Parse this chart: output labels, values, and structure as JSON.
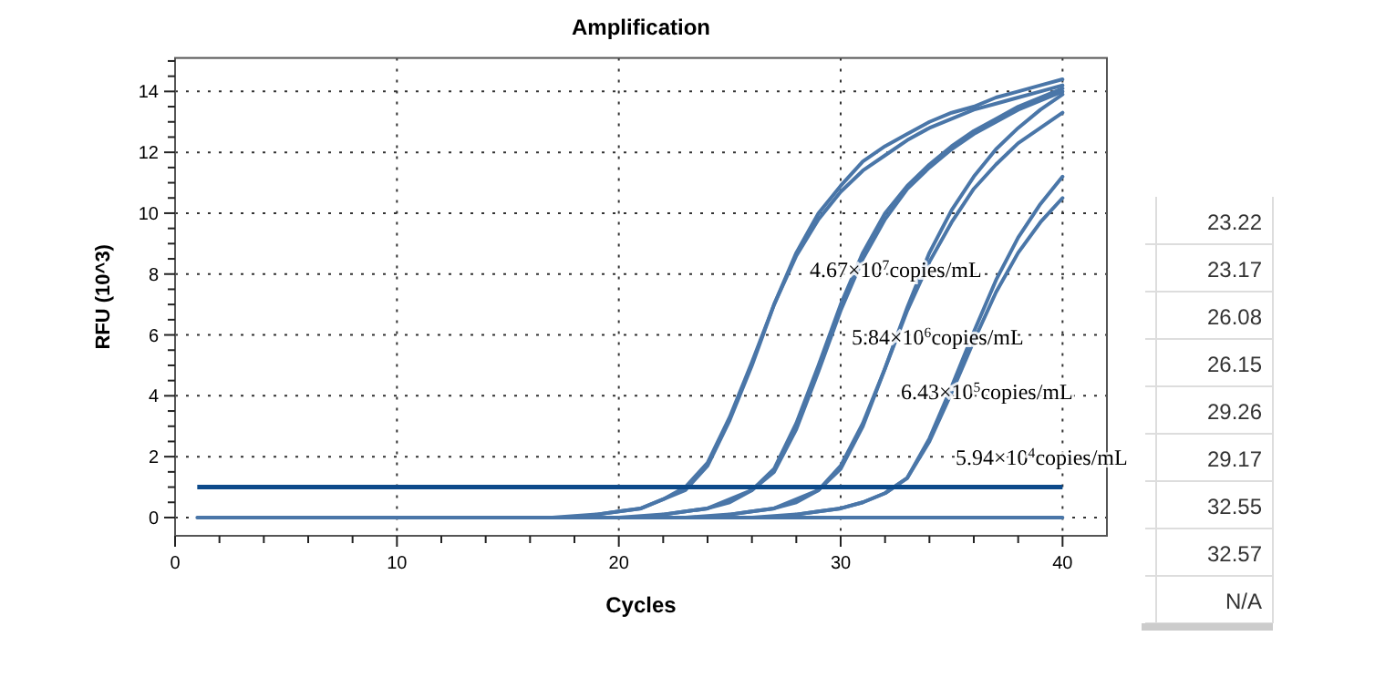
{
  "chart_data": {
    "type": "line",
    "title": "Amplification",
    "xlabel": "Cycles",
    "ylabel": "RFU (10^3)",
    "xlim": [
      0,
      42
    ],
    "ylim": [
      -0.6,
      15.1
    ],
    "xticks": [
      0,
      {
        "value": 2,
        "label": null
      },
      {
        "value": 4,
        "label": null
      },
      {
        "value": 6,
        "label": null
      },
      {
        "value": 8,
        "label": null
      },
      10,
      {
        "value": 12,
        "label": null
      },
      {
        "value": 14,
        "label": null
      },
      {
        "value": 16,
        "label": null
      },
      {
        "value": 18,
        "label": null
      },
      20,
      {
        "value": 22,
        "label": null
      },
      {
        "value": 24,
        "label": null
      },
      {
        "value": 26,
        "label": null
      },
      {
        "value": 28,
        "label": null
      },
      30,
      {
        "value": 32,
        "label": null
      },
      {
        "value": 34,
        "label": null
      },
      {
        "value": 36,
        "label": null
      },
      {
        "value": 38,
        "label": null
      },
      40
    ],
    "yticks": [
      0,
      {
        "value": 0.5,
        "label": null
      },
      {
        "value": 1,
        "label": null
      },
      {
        "value": 1.5,
        "label": null
      },
      2,
      {
        "value": 2.5,
        "label": null
      },
      {
        "value": 3,
        "label": null
      },
      {
        "value": 3.5,
        "label": null
      },
      4,
      {
        "value": 4.5,
        "label": null
      },
      {
        "value": 5,
        "label": null
      },
      {
        "value": 5.5,
        "label": null
      },
      6,
      {
        "value": 6.5,
        "label": null
      },
      {
        "value": 7,
        "label": null
      },
      {
        "value": 7.5,
        "label": null
      },
      8,
      {
        "value": 8.5,
        "label": null
      },
      {
        "value": 9,
        "label": null
      },
      {
        "value": 9.5,
        "label": null
      },
      10,
      {
        "value": 10.5,
        "label": null
      },
      {
        "value": 11,
        "label": null
      },
      {
        "value": 11.5,
        "label": null
      },
      12,
      {
        "value": 12.5,
        "label": null
      },
      {
        "value": 13,
        "label": null
      },
      {
        "value": 13.5,
        "label": null
      },
      14,
      {
        "value": 14.5,
        "label": null
      },
      {
        "value": 15,
        "label": null
      }
    ],
    "grid": true,
    "marker": "none",
    "line_style": "solid",
    "series": [
      {
        "color": "#4a76a8",
        "x": [
          17,
          19,
          20,
          21,
          22,
          23,
          24,
          25,
          26,
          27,
          28,
          29,
          30,
          31,
          32,
          33,
          34,
          35,
          36,
          37,
          38,
          39,
          40
        ],
        "values": [
          0,
          0.1,
          0.2,
          0.3,
          0.6,
          0.9,
          1.7,
          3.2,
          5.0,
          7.0,
          8.7,
          10.0,
          10.9,
          11.7,
          12.2,
          12.6,
          13.0,
          13.3,
          13.5,
          13.8,
          14.0,
          14.2,
          14.4
        ]
      },
      {
        "color": "#4a76a8",
        "x": [
          18,
          19,
          20,
          21,
          22,
          23,
          24,
          25,
          26,
          27,
          28,
          29,
          30,
          31,
          32,
          33,
          34,
          35,
          36,
          37,
          38,
          39,
          40
        ],
        "values": [
          0,
          0.1,
          0.2,
          0.3,
          0.6,
          1.0,
          1.8,
          3.3,
          5.1,
          7.0,
          8.6,
          9.8,
          10.7,
          11.4,
          11.9,
          12.4,
          12.8,
          13.1,
          13.4,
          13.6,
          13.8,
          14.0,
          14.2
        ]
      },
      {
        "color": "#4a76a8",
        "x": [
          20,
          22,
          23,
          24,
          25,
          26,
          27,
          28,
          29,
          30,
          31,
          32,
          33,
          34,
          35,
          36,
          37,
          38,
          39,
          40
        ],
        "values": [
          0,
          0.1,
          0.2,
          0.3,
          0.6,
          0.9,
          1.6,
          3.1,
          5.0,
          7.0,
          8.7,
          10.0,
          10.9,
          11.6,
          12.2,
          12.7,
          13.1,
          13.5,
          13.8,
          14.1
        ]
      },
      {
        "color": "#4a76a8",
        "x": [
          21,
          22,
          23,
          24,
          25,
          26,
          27,
          28,
          29,
          30,
          31,
          32,
          33,
          34,
          35,
          36,
          37,
          38,
          39,
          40
        ],
        "values": [
          0,
          0.1,
          0.2,
          0.3,
          0.5,
          0.9,
          1.5,
          2.9,
          4.8,
          6.8,
          8.5,
          9.8,
          10.8,
          11.5,
          12.1,
          12.6,
          13.0,
          13.4,
          13.7,
          14.0
        ]
      },
      {
        "color": "#4a76a8",
        "x": [
          23,
          25,
          26,
          27,
          28,
          29,
          30,
          31,
          32,
          33,
          34,
          35,
          36,
          37,
          38,
          39,
          40
        ],
        "values": [
          0,
          0.1,
          0.2,
          0.3,
          0.5,
          0.9,
          1.6,
          3.0,
          4.9,
          6.9,
          8.7,
          10.1,
          11.2,
          12.1,
          12.8,
          13.4,
          13.9
        ]
      },
      {
        "color": "#4a76a8",
        "x": [
          24,
          25,
          26,
          27,
          28,
          29,
          30,
          31,
          32,
          33,
          34,
          35,
          36,
          37,
          38,
          39,
          40
        ],
        "values": [
          0,
          0.1,
          0.2,
          0.3,
          0.6,
          0.9,
          1.7,
          3.1,
          4.9,
          6.8,
          8.4,
          9.7,
          10.8,
          11.6,
          12.3,
          12.8,
          13.3
        ]
      },
      {
        "color": "#4a76a8",
        "x": [
          26,
          28,
          29,
          30,
          31,
          32,
          33,
          34,
          35,
          36,
          37,
          38,
          39,
          40
        ],
        "values": [
          0,
          0.1,
          0.2,
          0.3,
          0.5,
          0.8,
          1.3,
          2.6,
          4.3,
          6.1,
          7.8,
          9.2,
          10.3,
          11.2
        ]
      },
      {
        "color": "#4a76a8",
        "x": [
          27,
          28,
          29,
          30,
          31,
          32,
          33,
          34,
          35,
          36,
          37,
          38,
          39,
          40
        ],
        "values": [
          0,
          0.1,
          0.2,
          0.3,
          0.5,
          0.8,
          1.3,
          2.5,
          4.1,
          5.8,
          7.4,
          8.7,
          9.7,
          10.5
        ]
      },
      {
        "color": "#4a76a8",
        "x": [
          1,
          40
        ],
        "values": [
          0,
          0
        ]
      }
    ],
    "ref_lines": [
      {
        "axis": "y",
        "value": 1,
        "color": "#0d4a8a"
      }
    ],
    "annotations": [
      "4.67×10$^{7}$copies/mL",
      "5.84×10$^{6}$copies/mL",
      "6.43×10$^{5}$copies/mL",
      "5.94×10$^{4}$copies/mL",
      "23.22",
      "23.17",
      "26.08",
      "26.15",
      "29.26",
      "29.17",
      "32.55",
      "32.57",
      "N/A"
    ]
  }
}
